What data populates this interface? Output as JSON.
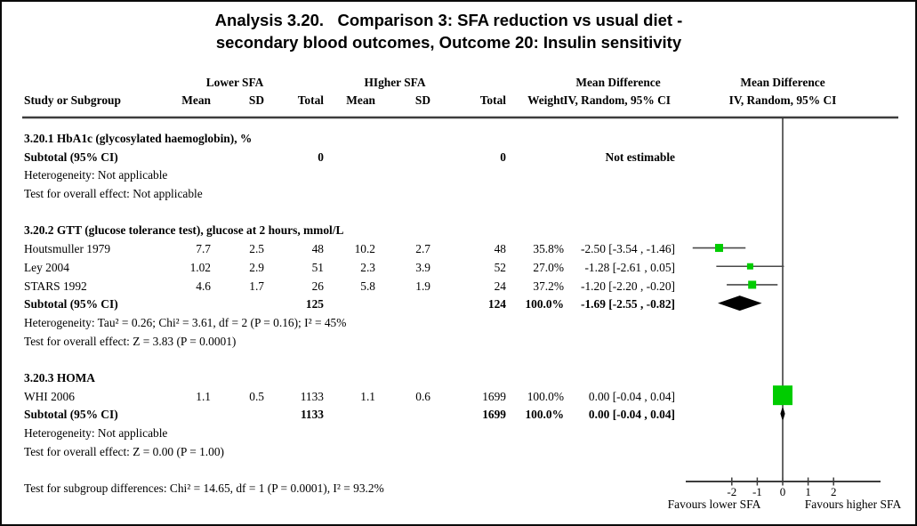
{
  "title": {
    "line1": "Analysis 3.20.   Comparison 3: SFA reduction vs usual diet -",
    "line2": "secondary blood outcomes, Outcome 20: Insulin sensitivity"
  },
  "table": {
    "group_lower": "Lower SFA",
    "group_higher": "HIgher SFA",
    "group_md_left": "Mean Difference",
    "group_md_right": "Mean Difference",
    "col_study": "Study or Subgroup",
    "col_mean": "Mean",
    "col_sd": "SD",
    "col_total": "Total",
    "col_mean2": "Mean",
    "col_sd2": "SD",
    "col_total2": "Total",
    "col_weight": "Weight",
    "col_ci": "IV, Random, 95% CI",
    "col_ci_right": "IV, Random, 95% CI"
  },
  "sections": [
    {
      "heading": "3.20.1 HbA1c (glycosylated haemoglobin), %",
      "studies": [],
      "subtotal": {
        "label": "Subtotal (95% CI)",
        "total1": "0",
        "total2": "0",
        "weight": "",
        "ci": "Not estimable"
      },
      "footnotes": [
        "Heterogeneity: Not applicable",
        "Test for overall effect: Not applicable"
      ]
    },
    {
      "heading": "3.20.2 GTT (glucose tolerance test), glucose at 2 hours, mmol/L",
      "studies": [
        {
          "name": "Houtsmuller 1979",
          "mean1": "7.7",
          "sd1": "2.5",
          "total1": "48",
          "mean2": "10.2",
          "sd2": "2.7",
          "total2": "48",
          "weight": "35.8%",
          "ci": "-2.50 [-3.54 , -1.46]",
          "est": -2.5,
          "lo": -3.54,
          "hi": -1.46,
          "size": 9
        },
        {
          "name": "Ley 2004",
          "mean1": "1.02",
          "sd1": "2.9",
          "total1": "51",
          "mean2": "2.3",
          "sd2": "3.9",
          "total2": "52",
          "weight": "27.0%",
          "ci": "-1.28 [-2.61 , 0.05]",
          "est": -1.28,
          "lo": -2.61,
          "hi": 0.05,
          "size": 7
        },
        {
          "name": "STARS 1992",
          "mean1": "4.6",
          "sd1": "1.7",
          "total1": "26",
          "mean2": "5.8",
          "sd2": "1.9",
          "total2": "24",
          "weight": "37.2%",
          "ci": "-1.20 [-2.20 , -0.20]",
          "est": -1.2,
          "lo": -2.2,
          "hi": -0.2,
          "size": 9
        }
      ],
      "subtotal": {
        "label": "Subtotal (95% CI)",
        "total1": "125",
        "total2": "124",
        "weight": "100.0%",
        "ci": "-1.69 [-2.55 , -0.82]",
        "est": -1.69,
        "lo": -2.55,
        "hi": -0.82
      },
      "footnotes": [
        "Heterogeneity: Tau² = 0.26; Chi² = 3.61, df = 2 (P = 0.16); I² = 45%",
        "Test for overall effect: Z = 3.83 (P = 0.0001)"
      ]
    },
    {
      "heading": "3.20.3 HOMA",
      "studies": [
        {
          "name": "WHI 2006",
          "mean1": "1.1",
          "sd1": "0.5",
          "total1": "1133",
          "mean2": "1.1",
          "sd2": "0.6",
          "total2": "1699",
          "weight": "100.0%",
          "ci": "0.00 [-0.04 , 0.04]",
          "est": 0,
          "lo": -0.04,
          "hi": 0.04,
          "size": 22
        }
      ],
      "subtotal": {
        "label": "Subtotal (95% CI)",
        "total1": "1133",
        "total2": "1699",
        "weight": "100.0%",
        "ci": "0.00 [-0.04 , 0.04]",
        "est": 0,
        "lo": -0.04,
        "hi": 0.04
      },
      "footnotes": [
        "Heterogeneity: Not applicable",
        "Test for overall effect: Z = 0.00 (P = 1.00)"
      ]
    }
  ],
  "footer": "Test for subgroup differences: Chi² = 14.65, df = 1 (P = 0.0001), I² = 93.2%",
  "axis": {
    "ticks": [
      -2,
      -1,
      0,
      1,
      2
    ],
    "left_label": "Favours lower SFA",
    "right_label": "Favours higher SFA"
  },
  "colors": {
    "marker_green": "#00CC00",
    "diamond": "#000000",
    "ci_line": "#4a4a4a",
    "rule": "#3d3d3d"
  },
  "chart_data": {
    "type": "scatter",
    "subtype": "forest_plot",
    "title": "Analysis 3.20. Comparison 3: SFA reduction vs usual diet - secondary blood outcomes, Outcome 20: Insulin sensitivity",
    "effect_measure": "Mean Difference, IV, Random, 95% CI",
    "xlim": [
      -3.85,
      3.85
    ],
    "x_ticks": [
      -2,
      -1,
      0,
      1,
      2
    ],
    "x_label_left": "Favours lower SFA",
    "x_label_right": "Favours higher SFA",
    "grid": false,
    "groups": [
      {
        "name": "3.20.1 HbA1c (glycosylated haemoglobin), %",
        "studies": [],
        "subtotal": "Not estimable",
        "heterogeneity": "Not applicable",
        "overall_effect": "Not applicable"
      },
      {
        "name": "3.20.2 GTT (glucose tolerance test), glucose at 2 hours, mmol/L",
        "studies": [
          {
            "study": "Houtsmuller 1979",
            "md": -2.5,
            "ci_low": -3.54,
            "ci_high": -1.46,
            "weight_pct": 35.8
          },
          {
            "study": "Ley 2004",
            "md": -1.28,
            "ci_low": -2.61,
            "ci_high": 0.05,
            "weight_pct": 27.0
          },
          {
            "study": "STARS 1992",
            "md": -1.2,
            "ci_low": -2.2,
            "ci_high": -0.2,
            "weight_pct": 37.2
          }
        ],
        "subtotal": {
          "md": -1.69,
          "ci_low": -2.55,
          "ci_high": -0.82,
          "weight_pct": 100.0
        },
        "heterogeneity": "Tau² = 0.26; Chi² = 3.61, df = 2 (P = 0.16); I² = 45%",
        "overall_effect": "Z = 3.83 (P = 0.0001)"
      },
      {
        "name": "3.20.3 HOMA",
        "studies": [
          {
            "study": "WHI 2006",
            "md": 0.0,
            "ci_low": -0.04,
            "ci_high": 0.04,
            "weight_pct": 100.0
          }
        ],
        "subtotal": {
          "md": 0.0,
          "ci_low": -0.04,
          "ci_high": 0.04,
          "weight_pct": 100.0
        },
        "heterogeneity": "Not applicable",
        "overall_effect": "Z = 0.00 (P = 1.00)"
      }
    ],
    "subgroup_difference_test": "Chi² = 14.65, df = 1 (P = 0.0001), I² = 93.2%"
  }
}
